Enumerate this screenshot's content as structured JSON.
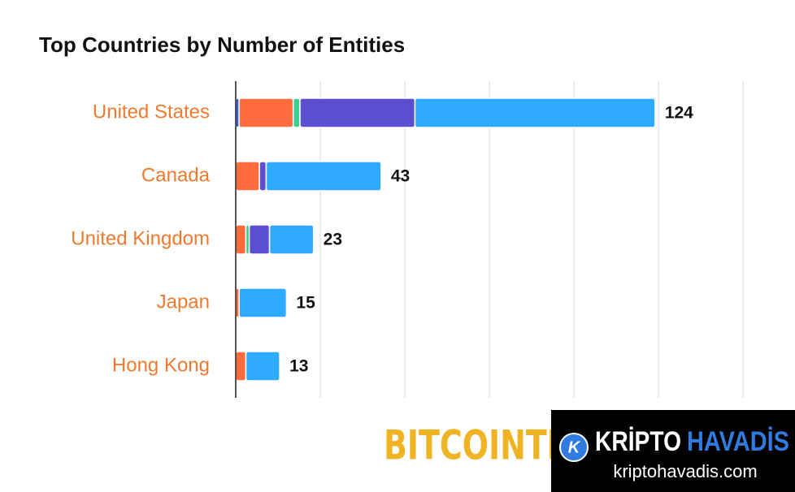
{
  "chart_data": {
    "type": "stacked-bar-horizontal",
    "title": "Top Countries by Number of Entities",
    "categories": [
      "United States",
      "Canada",
      "United Kingdom",
      "Japan",
      "Hong Kong"
    ],
    "series": [
      {
        "color": "#3f5bc9",
        "values": [
          1,
          0,
          0,
          0,
          0
        ]
      },
      {
        "color": "#ff6b3d",
        "values": [
          16,
          7,
          3,
          1,
          3
        ]
      },
      {
        "color": "#3ecf8e",
        "values": [
          2,
          0,
          1,
          0,
          0
        ]
      },
      {
        "color": "#5b4ecf",
        "values": [
          34,
          2,
          6,
          0,
          0
        ]
      },
      {
        "color": "#2eaaff",
        "values": [
          71,
          34,
          13,
          14,
          10
        ]
      }
    ],
    "totals": [
      124,
      43,
      23,
      15,
      13
    ],
    "xlim": [
      0,
      150
    ],
    "xticks": [
      0,
      25,
      50,
      75,
      100,
      125,
      150
    ],
    "grid": true
  },
  "watermarks": {
    "left": "BITCOINTR",
    "brand_a": "KRİPTO",
    "brand_b": "HAVADİS",
    "site": "kriptohavadis.com"
  }
}
